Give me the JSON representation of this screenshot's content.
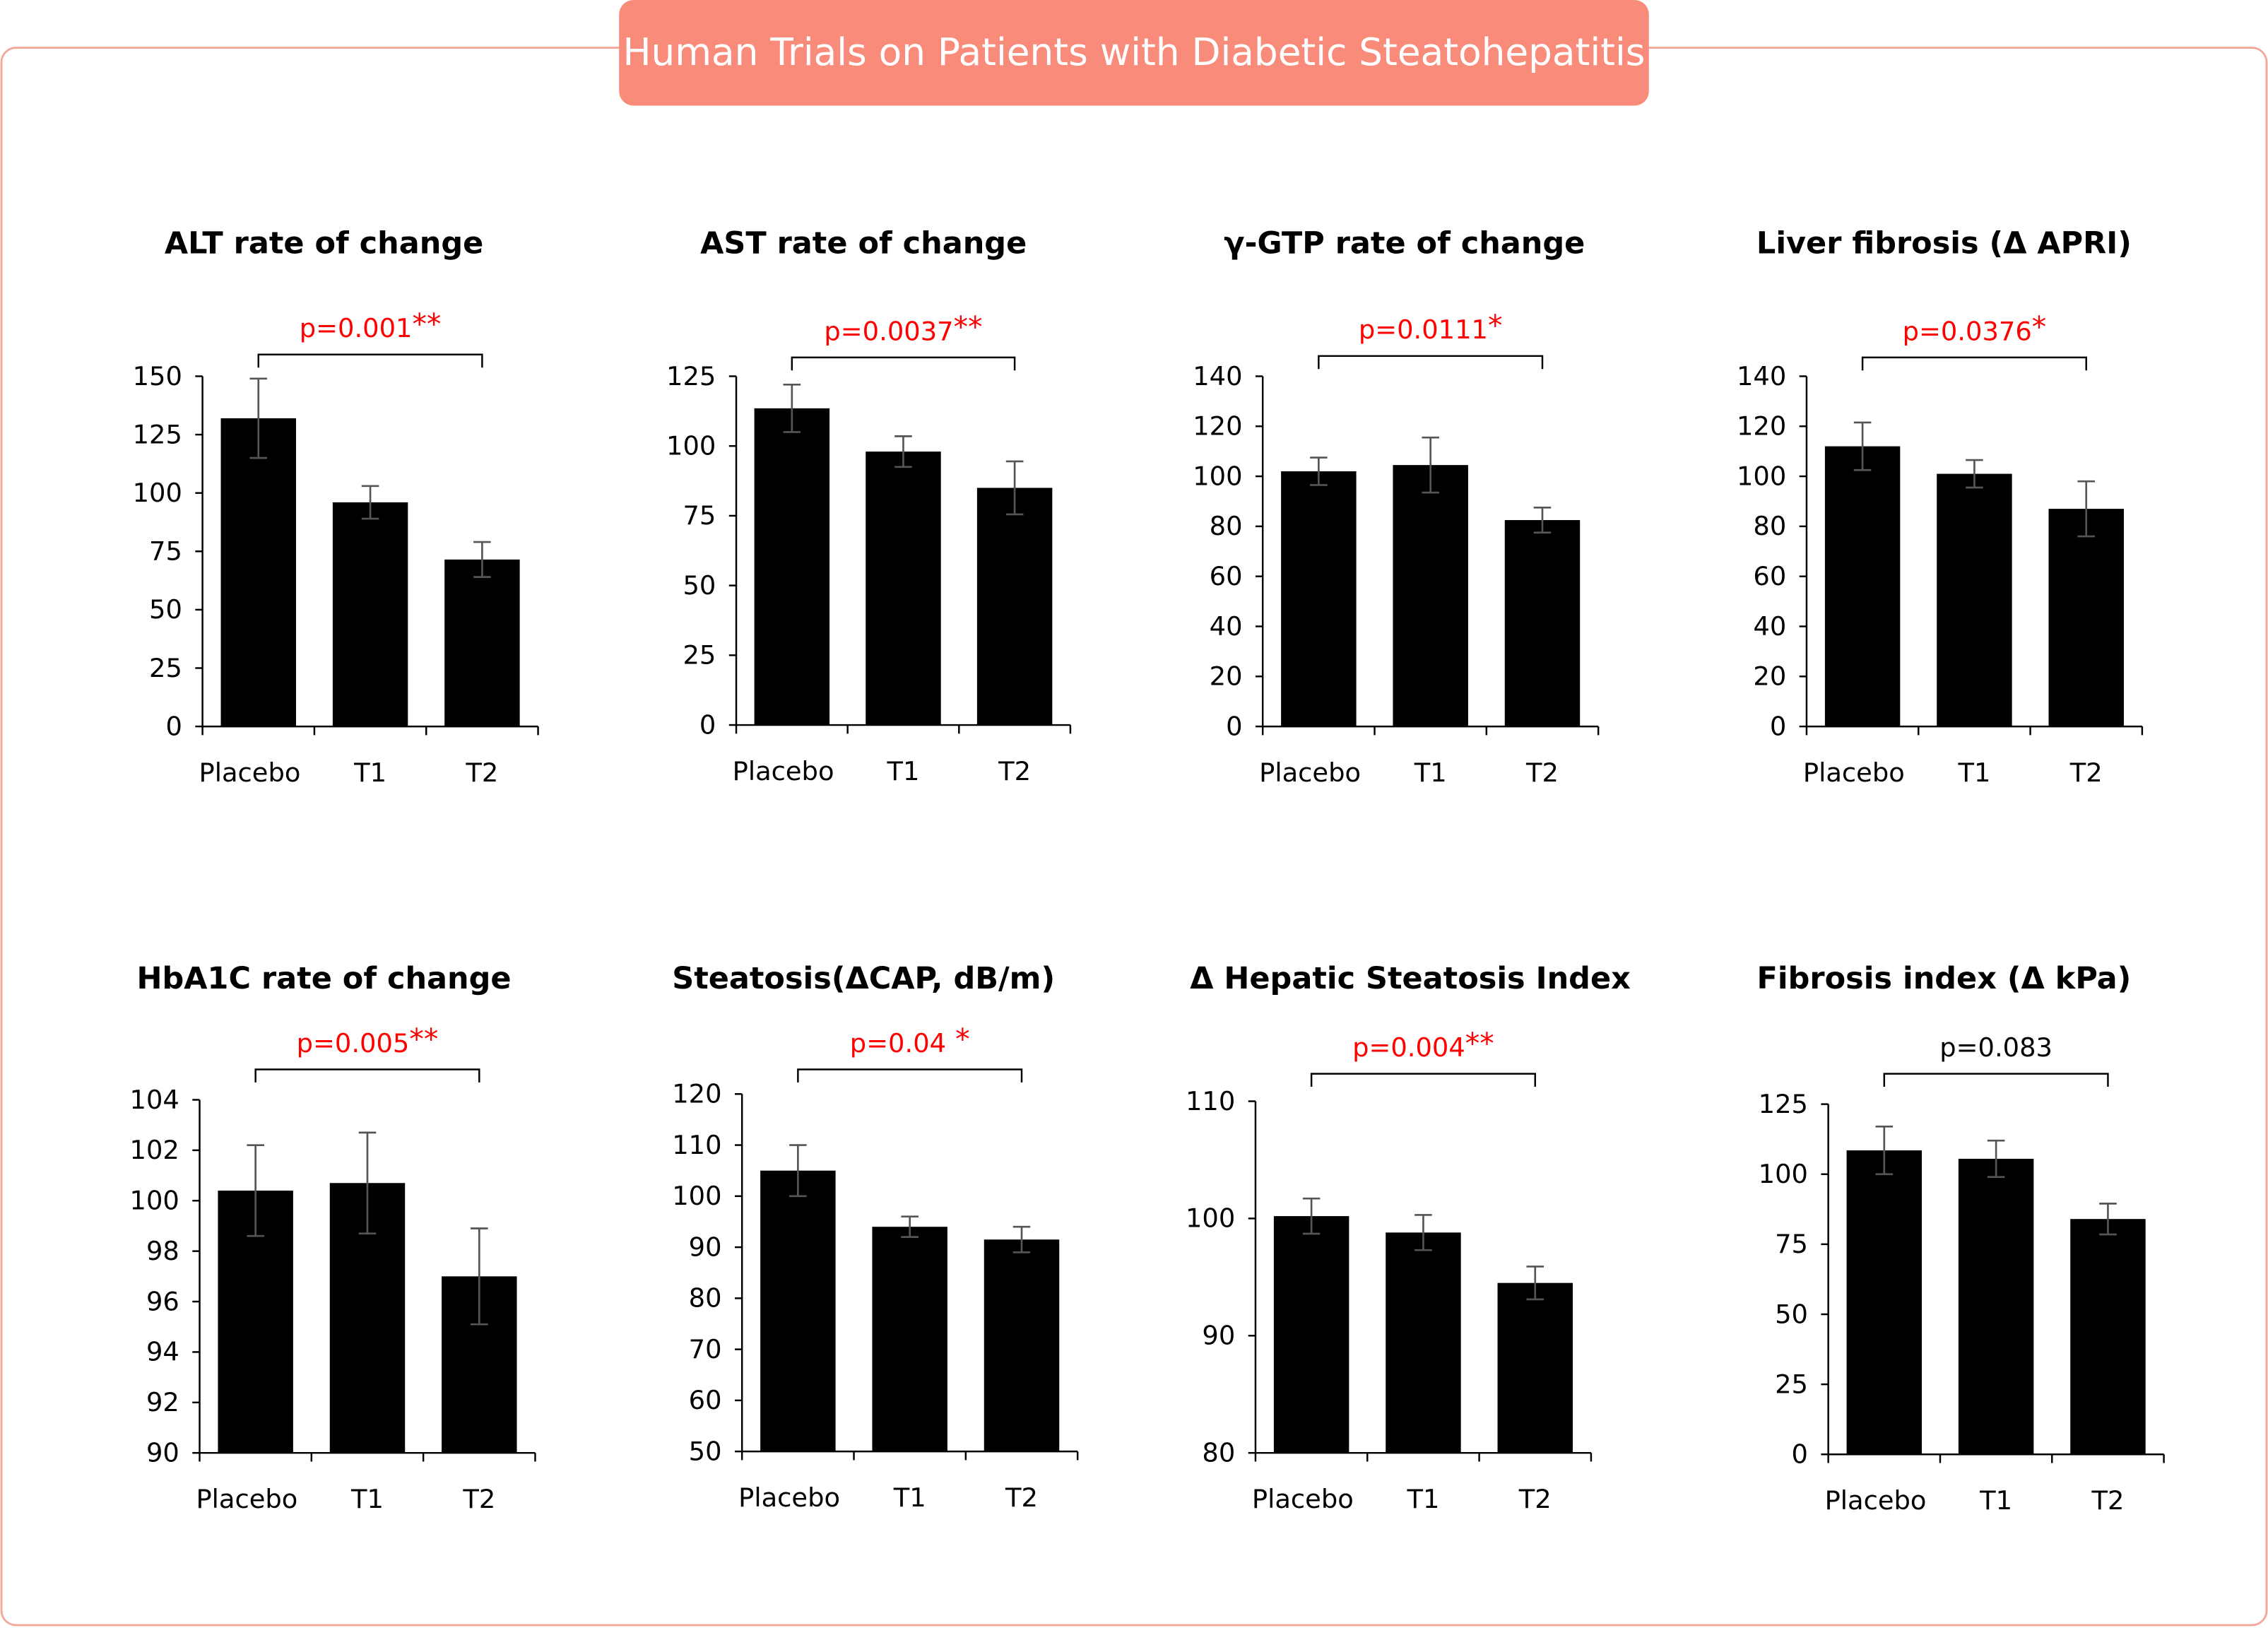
{
  "header": {
    "title": "Human Trials on Patients with Diabetic Steatohepatitis"
  },
  "colors": {
    "frame": "#f4a898",
    "banner": "#f98b7b",
    "bar": "#000000",
    "error_bar": "#555555",
    "significant": "#ff0000",
    "not_significant": "#000000"
  },
  "chart_data": [
    {
      "type": "bar",
      "title": "ALT rate of change",
      "categories": [
        "Placebo",
        "T1",
        "T2"
      ],
      "values": [
        132,
        96,
        71.5
      ],
      "errors": [
        17,
        7,
        7.5
      ],
      "ylim": [
        0,
        150
      ],
      "yticks": [
        "0",
        "25",
        "50",
        "75",
        "100",
        "125",
        "150"
      ],
      "p_value": "p=0.001",
      "stars": "**",
      "significant": true,
      "xlabel": "",
      "ylabel": ""
    },
    {
      "type": "bar",
      "title": "AST rate of change",
      "categories": [
        "Placebo",
        "T1",
        "T2"
      ],
      "values": [
        113.5,
        98,
        85
      ],
      "errors": [
        8.5,
        5.5,
        9.5
      ],
      "ylim": [
        0,
        125
      ],
      "yticks": [
        "0",
        "25",
        "50",
        "75",
        "100",
        "125"
      ],
      "p_value": "p=0.0037",
      "stars": "**",
      "significant": true,
      "xlabel": "",
      "ylabel": ""
    },
    {
      "type": "bar",
      "title": "γ-GTP rate of change",
      "categories": [
        "Placebo",
        "T1",
        "T2"
      ],
      "values": [
        102,
        104.5,
        82.5
      ],
      "errors": [
        5.5,
        11,
        5
      ],
      "ylim": [
        0,
        140
      ],
      "yticks": [
        "0",
        "20",
        "40",
        "60",
        "80",
        "100",
        "120",
        "140"
      ],
      "p_value": "p=0.0111",
      "stars": "*",
      "significant": true,
      "xlabel": "",
      "ylabel": ""
    },
    {
      "type": "bar",
      "title": "Liver fibrosis (Δ APRI)",
      "categories": [
        "Placebo",
        "T1",
        "T2"
      ],
      "values": [
        112,
        101,
        87
      ],
      "errors": [
        9.5,
        5.5,
        11
      ],
      "ylim": [
        0,
        140
      ],
      "yticks": [
        "0",
        "20",
        "40",
        "60",
        "80",
        "100",
        "120",
        "140"
      ],
      "p_value": "p=0.0376",
      "stars": "*",
      "significant": true,
      "xlabel": "",
      "ylabel": ""
    },
    {
      "type": "bar",
      "title": "HbA1C rate of change",
      "categories": [
        "Placebo",
        "T1",
        "T2"
      ],
      "values": [
        100.4,
        100.7,
        97
      ],
      "errors": [
        1.8,
        2,
        1.9
      ],
      "ylim": [
        90,
        104
      ],
      "yticks": [
        "90",
        "92",
        "94",
        "96",
        "98",
        "100",
        "102",
        "104"
      ],
      "p_value": "p=0.005",
      "stars": "**",
      "significant": true,
      "xlabel": "",
      "ylabel": ""
    },
    {
      "type": "bar",
      "title": "Steatosis(ΔCAP, dB/m)",
      "categories": [
        "Placebo",
        "T1",
        "T2"
      ],
      "values": [
        105,
        94,
        91.5
      ],
      "errors": [
        5,
        2,
        2.5
      ],
      "ylim": [
        50,
        120
      ],
      "yticks": [
        "50",
        "60",
        "70",
        "80",
        "90",
        "100",
        "110",
        "120"
      ],
      "p_value": "p=0.04",
      "stars": " *",
      "significant": true,
      "xlabel": "",
      "ylabel": ""
    },
    {
      "type": "bar",
      "title": "Δ Hepatic Steatosis Index",
      "categories": [
        "Placebo",
        "T1",
        "T2"
      ],
      "values": [
        100.2,
        98.8,
        94.5
      ],
      "errors": [
        1.5,
        1.5,
        1.4
      ],
      "ylim": [
        80,
        110
      ],
      "yticks": [
        "80",
        "90",
        "100",
        "110"
      ],
      "p_value": "p=0.004",
      "stars": "**",
      "significant": true,
      "xlabel": "",
      "ylabel": ""
    },
    {
      "type": "bar",
      "title": "Fibrosis index (Δ kPa)",
      "categories": [
        "Placebo",
        "T1",
        "T2"
      ],
      "values": [
        108.5,
        105.5,
        84
      ],
      "errors": [
        8.5,
        6.5,
        5.5
      ],
      "ylim": [
        0,
        125
      ],
      "yticks": [
        "0",
        "25",
        "50",
        "75",
        "100",
        "125"
      ],
      "p_value": "p=0.083",
      "stars": "",
      "significant": false,
      "xlabel": "",
      "ylabel": ""
    }
  ]
}
